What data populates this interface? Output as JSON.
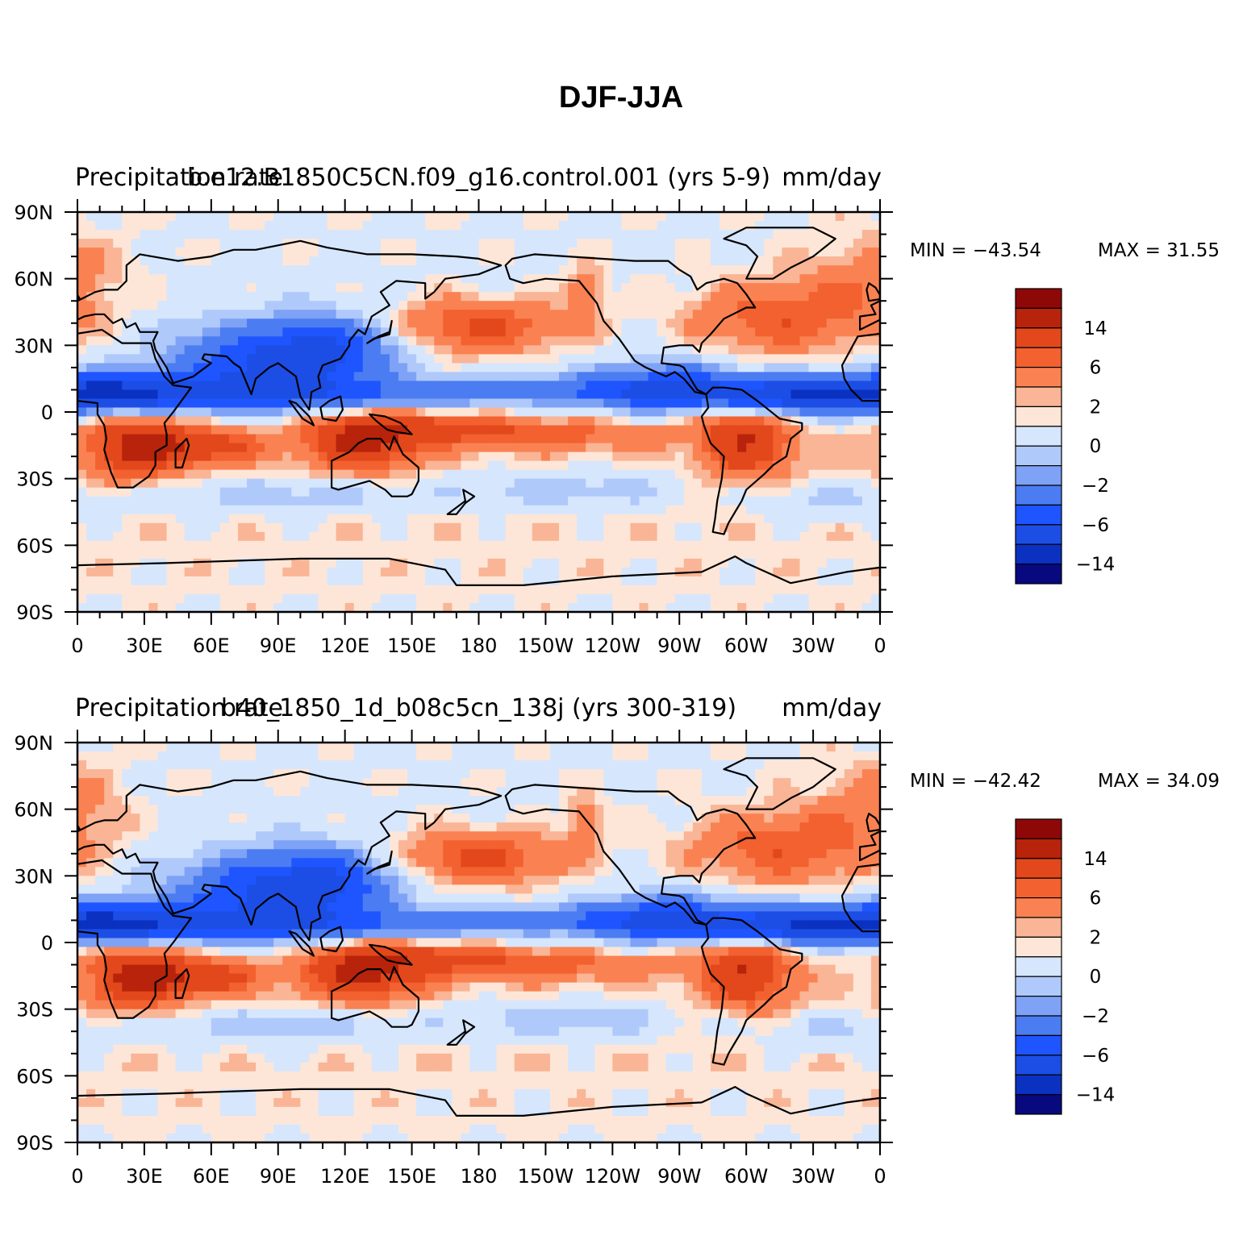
{
  "figure": {
    "title": "DJF-JJA"
  },
  "colors": {
    "levels": [
      "#08087f",
      "#0b31c1",
      "#1c4ee6",
      "#1e55ff",
      "#4b7cf2",
      "#7ea2f5",
      "#b0c9fb",
      "#d6e6fd",
      "#fde6d7",
      "#f9b596",
      "#fa8252",
      "#f2612f",
      "#e2481b",
      "#b8230b",
      "#8f0808"
    ],
    "coastline": "#000000"
  },
  "chart_data": [
    {
      "type": "heatmap",
      "id": "panel1",
      "left_title": "Precipitation rate",
      "center_title": "b.e12.B1850C5CN.f09_g16.control.001 (yrs 5-9)",
      "right_title": "mm/day",
      "min_label": "MIN = −43.54",
      "max_label": "MAX =   31.55",
      "x_ticks": [
        "0",
        "30E",
        "60E",
        "90E",
        "120E",
        "150E",
        "180",
        "150W",
        "120W",
        "90W",
        "60W",
        "30W",
        "0"
      ],
      "y_ticks": [
        "90N",
        "60N",
        "30N",
        "0",
        "30S",
        "60S",
        "90S"
      ],
      "xlim": [
        0,
        360
      ],
      "ylim": [
        -90,
        90
      ],
      "colorbar_labels": [
        "14",
        "6",
        "2",
        "0",
        "−2",
        "−6",
        "−14"
      ]
    },
    {
      "type": "heatmap",
      "id": "panel2",
      "left_title": "Precipitation rate",
      "center_title": "b40_1850_1d_b08c5cn_138j (yrs 300-319)",
      "right_title": "mm/day",
      "min_label": "MIN = −42.42",
      "max_label": "MAX =   34.09",
      "x_ticks": [
        "0",
        "30E",
        "60E",
        "90E",
        "120E",
        "150E",
        "180",
        "150W",
        "120W",
        "90W",
        "60W",
        "30W",
        "0"
      ],
      "y_ticks": [
        "90N",
        "60N",
        "30N",
        "0",
        "30S",
        "60S",
        "90S"
      ],
      "xlim": [
        0,
        360
      ],
      "ylim": [
        -90,
        90
      ],
      "colorbar_labels": [
        "14",
        "6",
        "2",
        "0",
        "−2",
        "−6",
        "−14"
      ]
    }
  ]
}
